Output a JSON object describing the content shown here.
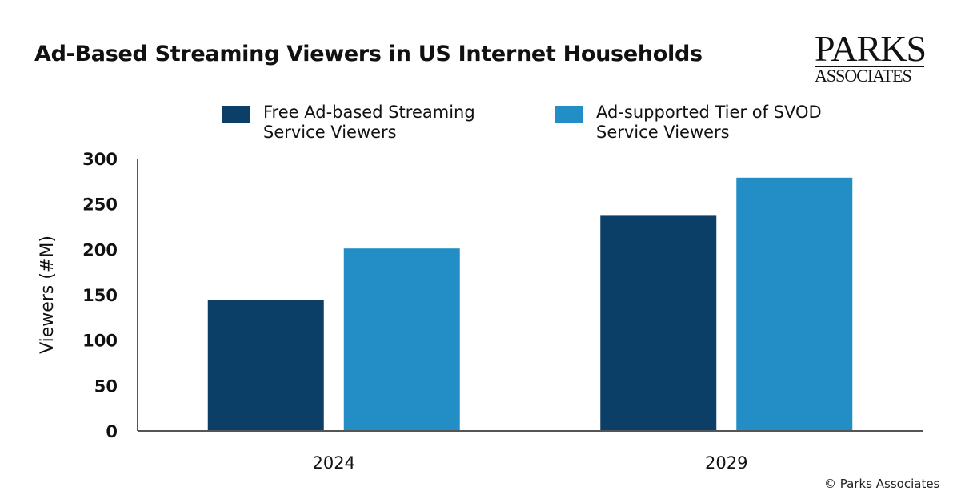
{
  "header": {
    "title": "Ad-Based Streaming Viewers in US Internet Households"
  },
  "logo": {
    "line1": "PARKS",
    "line2": "ASSOCIATES"
  },
  "footer": {
    "copyright": "© Parks Associates"
  },
  "colors": {
    "series1": "#0c3f67",
    "series2": "#238dc6",
    "axis": "#555555"
  },
  "chart_data": {
    "type": "bar",
    "title": "Ad-Based Streaming Viewers in US Internet Households",
    "xlabel": "",
    "ylabel": "Viewers (#M)",
    "ylim": [
      0,
      300
    ],
    "yticks": [
      0,
      50,
      100,
      150,
      200,
      250,
      300
    ],
    "categories": [
      "2024",
      "2029"
    ],
    "series": [
      {
        "name": "Free Ad-based Streaming Service Viewers",
        "values": [
          144,
          237
        ]
      },
      {
        "name": "Ad-supported Tier of SVOD Service Viewers",
        "values": [
          201,
          279
        ]
      }
    ],
    "grid": false,
    "legend": "top"
  }
}
